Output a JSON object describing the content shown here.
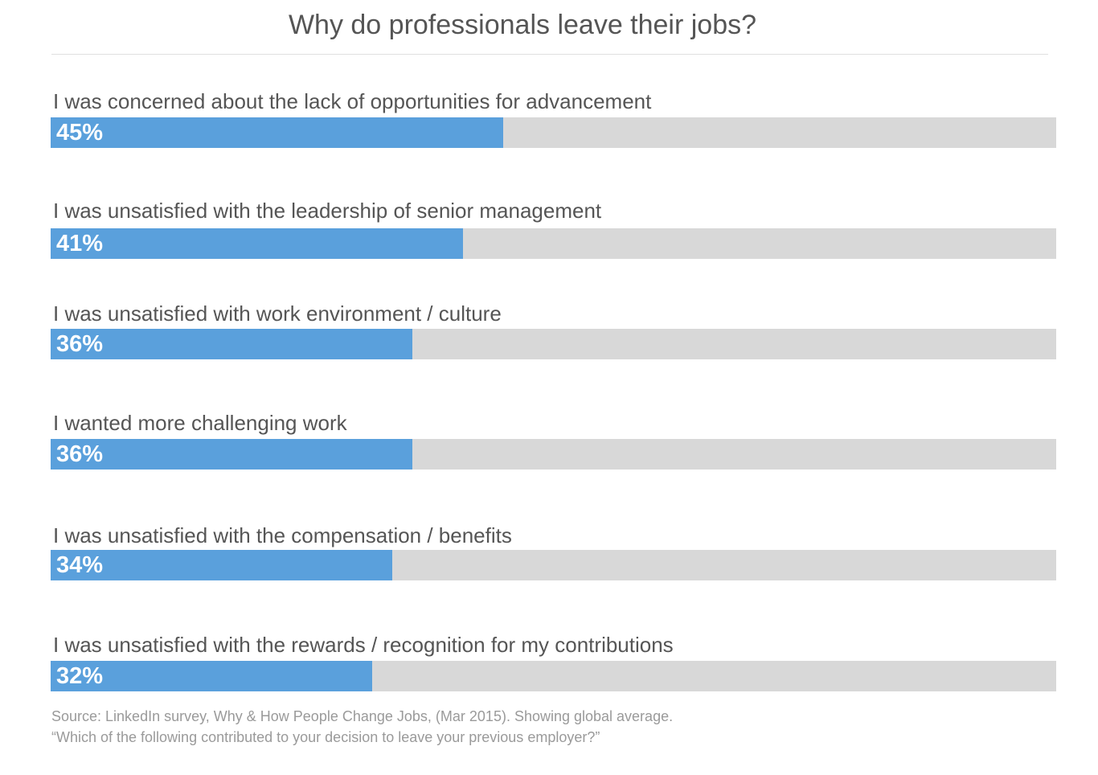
{
  "chart_data": {
    "type": "bar",
    "orientation": "horizontal",
    "title": "Why do professionals leave their jobs?",
    "xlim": [
      0,
      100
    ],
    "categories": [
      "I was concerned about the lack of opportunities for advancement",
      "I was unsatisfied with the leadership of senior management",
      "I was unsatisfied with work environment / culture",
      "I wanted more challenging work",
      "I was unsatisfied with the compensation / benefits",
      "I was unsatisfied with the rewards / recognition for my contributions"
    ],
    "values": [
      45,
      41,
      36,
      36,
      34,
      32
    ],
    "value_labels": [
      "45%",
      "41%",
      "36%",
      "36%",
      "34%",
      "32%"
    ],
    "grid": false,
    "legend": "none",
    "colors": {
      "bar": "#5aa0dc",
      "track": "#d8d8d8",
      "label_text": "#555555",
      "value_text": "#ffffff",
      "source_text": "#9a9a9a"
    }
  },
  "footer": {
    "source_line1": "Source: LinkedIn survey, Why & How People Change Jobs, (Mar 2015). Showing global average.",
    "source_line2": "“Which of the following contributed to your decision to leave your previous employer?”"
  }
}
